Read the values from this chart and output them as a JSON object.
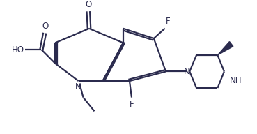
{
  "bg_color": "#ffffff",
  "line_color": "#2b2b4e",
  "text_color": "#2b2b4e",
  "bond_lw": 1.6,
  "fig_w": 3.69,
  "fig_h": 1.92,
  "dpi": 100,
  "xlim": [
    0,
    9.5
  ],
  "ylim": [
    0,
    4.8
  ]
}
